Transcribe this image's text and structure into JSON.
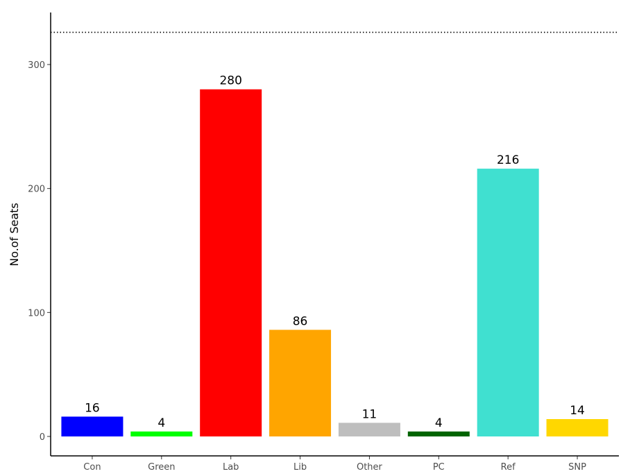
{
  "chart_data": {
    "type": "bar",
    "title": "",
    "xlabel": "",
    "ylabel": "No.of Seats",
    "categories": [
      "Con",
      "Green",
      "Lab",
      "Lib",
      "Other",
      "PC",
      "Ref",
      "SNP"
    ],
    "values": [
      16,
      4,
      280,
      86,
      11,
      4,
      216,
      14
    ],
    "colors": [
      "#0000ff",
      "#00ff00",
      "#ff0000",
      "#ffa500",
      "#bebebe",
      "#006400",
      "#40e0d0",
      "#ffd700"
    ],
    "ylim": [
      0,
      340
    ],
    "yticks": [
      0,
      100,
      200,
      300
    ],
    "reference_line": {
      "value": 326,
      "style": "dotted"
    },
    "grid": false,
    "legend": "none"
  }
}
